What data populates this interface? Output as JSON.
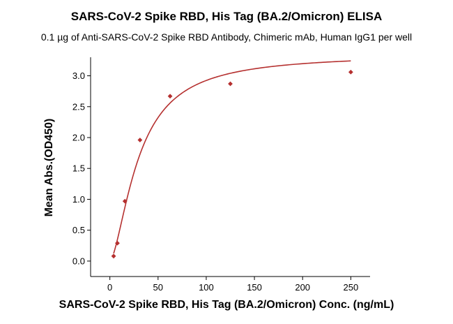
{
  "chart_data": {
    "type": "scatter",
    "title": "SARS-CoV-2 Spike RBD, His Tag (BA.2/Omicron) ELISA",
    "subtitle": "0.1 µg of Anti-SARS-CoV-2 Spike RBD Antibody, Chimeric mAb, Human IgG1 per well",
    "xlabel": "SARS-CoV-2 Spike RBD, His Tag (BA.2/Omicron) Conc. (ng/mL)",
    "ylabel": "Mean Abs.(OD450)",
    "xlim": [
      -20,
      270
    ],
    "ylim": [
      -0.25,
      3.3
    ],
    "xticks": [
      0,
      50,
      100,
      150,
      200,
      250
    ],
    "yticks": [
      0.0,
      0.5,
      1.0,
      1.5,
      2.0,
      2.5,
      3.0
    ],
    "ytick_labels": [
      "0.0",
      "0.5",
      "1.0",
      "1.5",
      "2.0",
      "2.5",
      "3.0"
    ],
    "grid": false,
    "color": "#b5302f",
    "series": [
      {
        "x": [
          3.9,
          7.8,
          15.6,
          31.25,
          62.5,
          125,
          250
        ],
        "y": [
          0.08,
          0.29,
          0.97,
          1.96,
          2.67,
          2.87,
          3.06
        ],
        "fit": "four-parameter logistic"
      }
    ]
  }
}
